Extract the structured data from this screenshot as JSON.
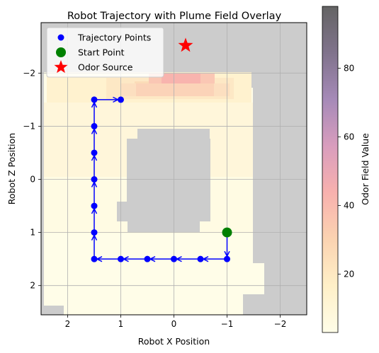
{
  "chart_data": {
    "type": "scatter",
    "title": "Robot Trajectory with Plume Field Overlay",
    "xlabel": "Robot X Position",
    "ylabel": "Robot Z Position",
    "x_inverted": true,
    "y_inverted": true,
    "xlim": [
      2.5,
      -2.5
    ],
    "ylim": [
      -2.95,
      2.55
    ],
    "x_ticks": [
      2,
      1,
      0,
      -1,
      -2
    ],
    "y_ticks": [
      -2,
      -1,
      0,
      1,
      2
    ],
    "x_tick_labels": [
      "2",
      "1",
      "0",
      "−1",
      "−2"
    ],
    "y_tick_labels": [
      "−2",
      "−1",
      "0",
      "1",
      "2"
    ],
    "grid": true,
    "legend_position": "top-left",
    "legend": [
      {
        "label": "Trajectory Points",
        "marker": "circle",
        "color": "#0000ff"
      },
      {
        "label": "Start Point",
        "marker": "circle",
        "color": "#008000"
      },
      {
        "label": "Odor Source",
        "marker": "star",
        "color": "#ff0000"
      }
    ],
    "trajectory_points": {
      "x": [
        -1.0,
        -1.0,
        -0.5,
        0.0,
        0.5,
        1.0,
        1.5,
        1.5,
        1.5,
        1.5,
        1.5,
        1.5,
        1.5,
        1.0
      ],
      "z": [
        1.0,
        1.5,
        1.5,
        1.5,
        1.5,
        1.5,
        1.5,
        1.0,
        0.5,
        0.0,
        -0.5,
        -1.0,
        -1.5,
        -1.5
      ],
      "color": "#0000ff"
    },
    "start_point": {
      "x": -1.0,
      "z": 1.0,
      "color": "#008000"
    },
    "odor_source": {
      "x": -0.22,
      "z": -2.52,
      "color": "#ff0000"
    },
    "obstacle_color": "#cccccc",
    "colorbar": {
      "label": "Odor Field Value",
      "min": 3,
      "max": 98,
      "ticks": [
        20,
        40,
        60,
        80
      ],
      "colors": [
        "#fffde8",
        "#fff0c8",
        "#fbd3b1",
        "#f8b1ae",
        "#d99dbd",
        "#a68ab8",
        "#80738c",
        "#646464"
      ]
    }
  }
}
